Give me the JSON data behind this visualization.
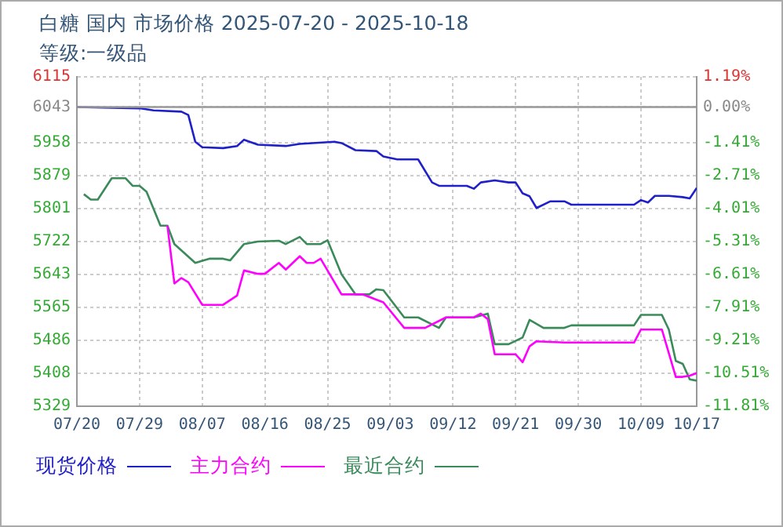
{
  "chart_data": {
    "type": "line",
    "title": "白糖  国内  市场价格 2025-07-20 - 2025-10-18",
    "subtitle": "等级:一级品",
    "xlim": [
      "--07-20",
      "--10-17"
    ],
    "xticks": [
      {
        "value": "--07-20",
        "label": "07/20"
      },
      {
        "value": "--07-29",
        "label": "07/29"
      },
      {
        "value": "--08-07",
        "label": "08/07"
      },
      {
        "value": "--08-16",
        "label": "08/16"
      },
      {
        "value": "--08-25",
        "label": "08/25"
      },
      {
        "value": "--09-03",
        "label": "09/03"
      },
      {
        "value": "--09-12",
        "label": "09/12"
      },
      {
        "value": "--09-21",
        "label": "09/21"
      },
      {
        "value": "--09-30",
        "label": "09/30"
      },
      {
        "value": "--10-09",
        "label": "10/09"
      },
      {
        "value": "--10-17",
        "label": "10/17"
      }
    ],
    "ylim": [
      5329,
      6115
    ],
    "yticks": [
      5329,
      5408,
      5486,
      5565,
      5643,
      5722,
      5801,
      5879,
      5958,
      6043,
      6115
    ],
    "y2lim": [
      -11.81,
      1.19
    ],
    "y2ticks": [
      {
        "value": -11.81,
        "label": "-11.81%"
      },
      {
        "value": -10.51,
        "label": "-10.51%"
      },
      {
        "value": -9.21,
        "label": "-9.21%"
      },
      {
        "value": -7.91,
        "label": "-7.91%"
      },
      {
        "value": -6.61,
        "label": "-6.61%"
      },
      {
        "value": -5.31,
        "label": "-5.31%"
      },
      {
        "value": -4.01,
        "label": "-4.01%"
      },
      {
        "value": -2.71,
        "label": "-2.71%"
      },
      {
        "value": -1.41,
        "label": "-1.41%"
      },
      {
        "value": 0,
        "label": "0.00%"
      },
      {
        "value": 1.19,
        "label": "1.19%"
      }
    ],
    "ref_lines": [
      {
        "axis": "y2",
        "value": 0,
        "color": "#999999"
      }
    ],
    "grid": true,
    "legend": "bottom left",
    "marker": "none",
    "line_style": "solid",
    "series": [
      {
        "name": "现货价格",
        "color": "#2020c8",
        "x": [
          "--07-20",
          "--07-29",
          "--07-31",
          "--08-04",
          "--08-05",
          "--08-06",
          "--08-07",
          "--08-10",
          "--08-12",
          "--08-13",
          "--08-15",
          "--08-19",
          "--08-21",
          "--08-26",
          "--08-27",
          "--08-29",
          "--09-01",
          "--09-02",
          "--09-04",
          "--09-07",
          "--09-09",
          "--09-10",
          "--09-14",
          "--09-15",
          "--09-16",
          "--09-18",
          "--09-20",
          "--09-21",
          "--09-22",
          "--09-23",
          "--09-24",
          "--09-26",
          "--09-28",
          "--09-29",
          "--10-08",
          "--10-09",
          "--10-10",
          "--10-11",
          "--10-13",
          "--10-15",
          "--10-16",
          "--10-17"
        ],
        "values": [
          6043,
          6040,
          6035,
          6032,
          6024,
          5960,
          5947,
          5945,
          5950,
          5965,
          5953,
          5950,
          5955,
          5960,
          5957,
          5940,
          5938,
          5925,
          5918,
          5918,
          5863,
          5855,
          5855,
          5848,
          5863,
          5868,
          5863,
          5863,
          5837,
          5830,
          5802,
          5818,
          5818,
          5810,
          5810,
          5821,
          5815,
          5831,
          5831,
          5828,
          5825,
          5850
        ]
      },
      {
        "name": "主力合约",
        "color": "#ff00ff",
        "x": [
          "--08-02",
          "--08-03",
          "--08-04",
          "--08-05",
          "--08-07",
          "--08-10",
          "--08-12",
          "--08-13",
          "--08-15",
          "--08-16",
          "--08-18",
          "--08-19",
          "--08-21",
          "--08-22",
          "--08-23",
          "--08-24",
          "--08-27",
          "--08-30",
          "--09-02",
          "--09-05",
          "--09-08",
          "--09-11",
          "--09-15",
          "--09-16",
          "--09-17",
          "--09-18",
          "--09-21",
          "--09-22",
          "--09-23",
          "--09-24",
          "--09-28",
          "--10-08",
          "--10-09",
          "--10-12",
          "--10-14",
          "--10-15",
          "--10-16",
          "--10-17"
        ],
        "values": [
          5760,
          5622,
          5635,
          5625,
          5571,
          5571,
          5593,
          5653,
          5645,
          5645,
          5671,
          5655,
          5687,
          5671,
          5671,
          5681,
          5596,
          5596,
          5577,
          5516,
          5516,
          5541,
          5541,
          5550,
          5537,
          5453,
          5453,
          5434,
          5472,
          5484,
          5481,
          5481,
          5512,
          5512,
          5399,
          5399,
          5402,
          5408
        ]
      },
      {
        "name": "最近合约",
        "color": "#3a8a5a",
        "x": [
          "--07-21",
          "--07-22",
          "--07-23",
          "--07-25",
          "--07-27",
          "--07-28",
          "--07-29",
          "--07-30",
          "--08-01",
          "--08-02",
          "--08-03",
          "--08-06",
          "--08-08",
          "--08-10",
          "--08-11",
          "--08-13",
          "--08-15",
          "--08-18",
          "--08-19",
          "--08-21",
          "--08-22",
          "--08-24",
          "--08-25",
          "--08-27",
          "--08-29",
          "--08-31",
          "--09-01",
          "--09-02",
          "--09-05",
          "--09-07",
          "--09-10",
          "--09-11",
          "--09-15",
          "--09-17",
          "--09-18",
          "--09-20",
          "--09-22",
          "--09-23",
          "--09-25",
          "--09-28",
          "--09-29",
          "--10-08",
          "--10-09",
          "--10-12",
          "--10-13",
          "--10-14",
          "--10-15",
          "--10-16",
          "--10-17"
        ],
        "values": [
          5835,
          5822,
          5822,
          5873,
          5873,
          5855,
          5855,
          5841,
          5760,
          5760,
          5716,
          5671,
          5681,
          5681,
          5677,
          5716,
          5722,
          5724,
          5716,
          5733,
          5716,
          5716,
          5725,
          5644,
          5596,
          5596,
          5608,
          5606,
          5541,
          5541,
          5516,
          5541,
          5541,
          5550,
          5477,
          5477,
          5493,
          5535,
          5516,
          5516,
          5522,
          5522,
          5547,
          5547,
          5512,
          5437,
          5430,
          5393,
          5390
        ]
      }
    ]
  }
}
